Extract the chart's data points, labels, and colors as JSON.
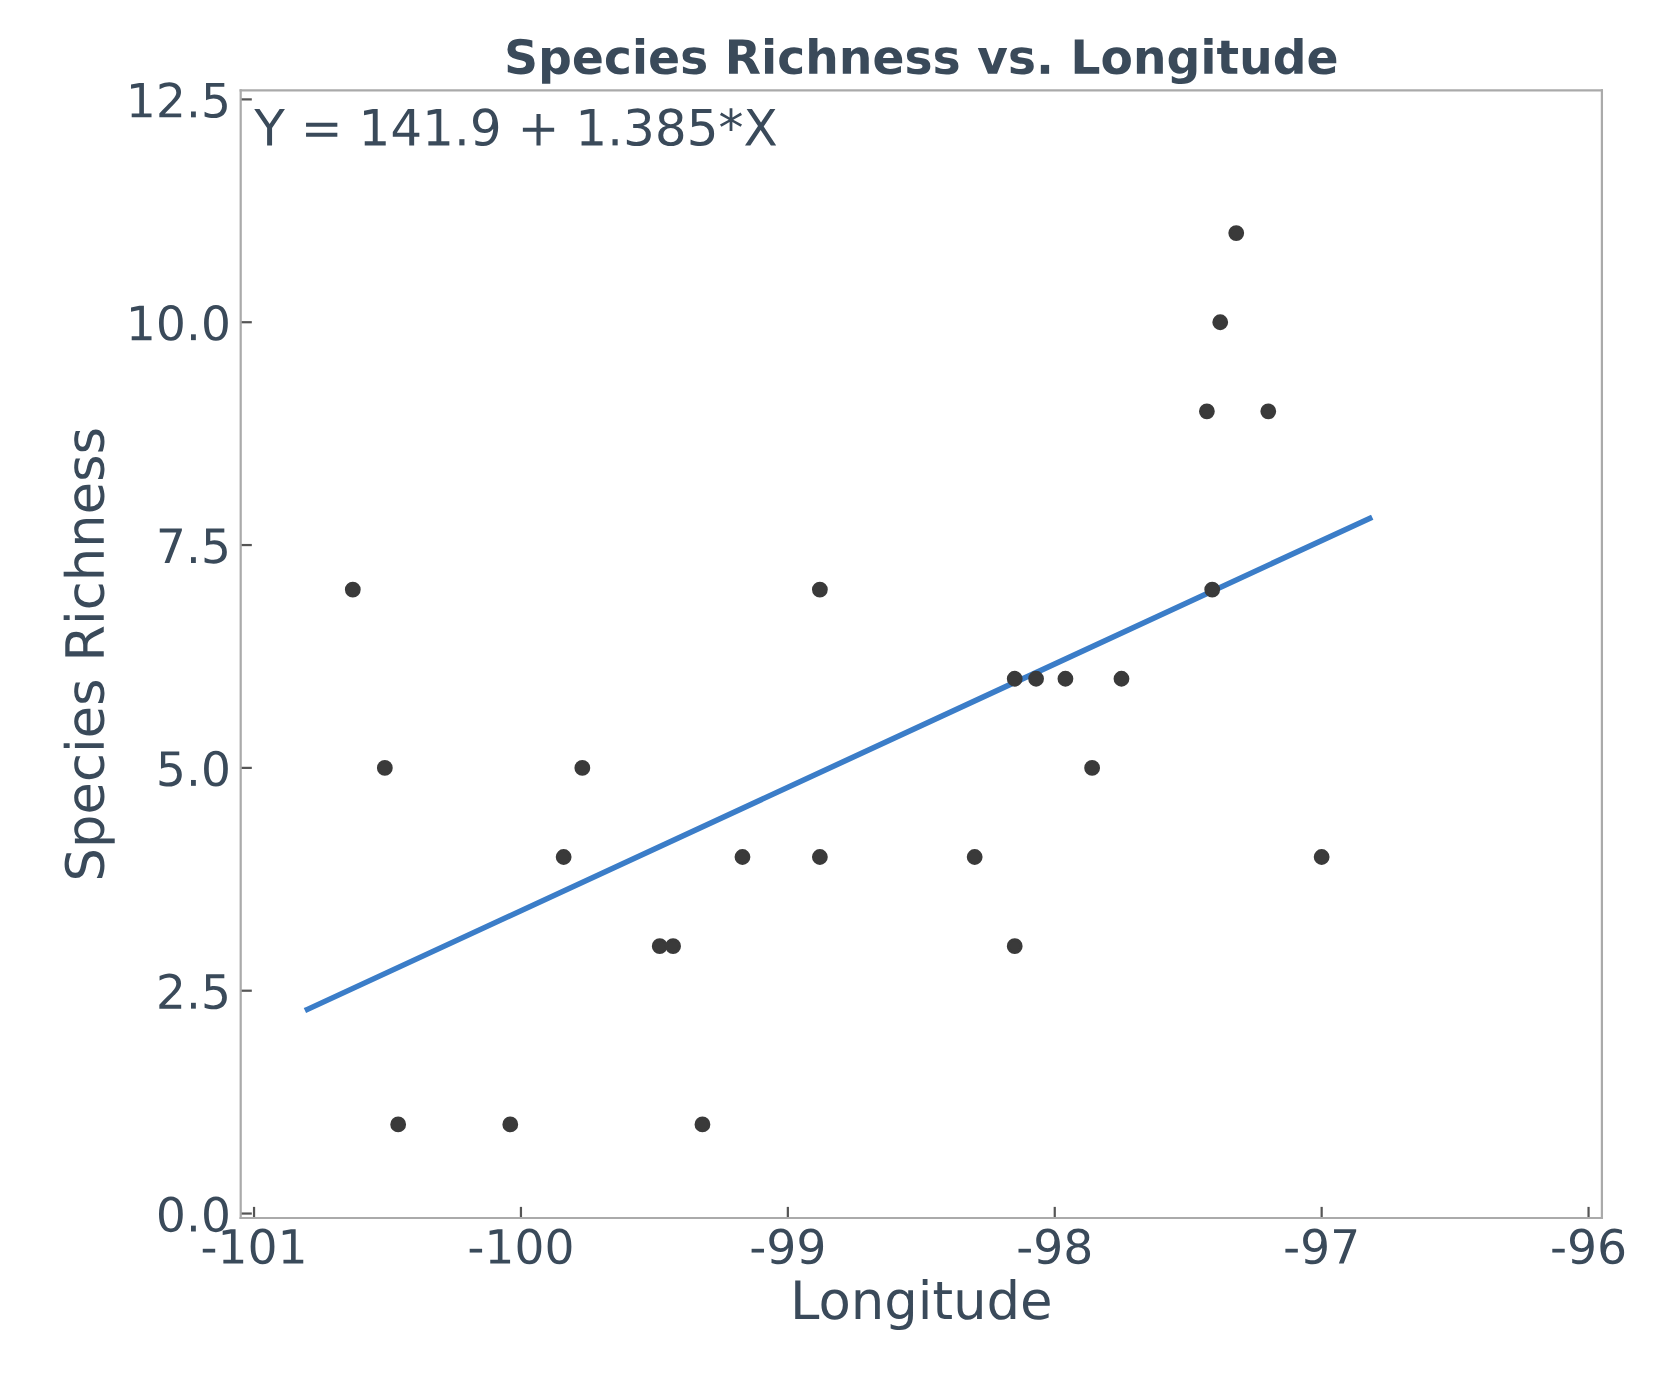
{
  "chart_data": {
    "type": "scatter",
    "title": "Species Richness vs. Longitude",
    "xlabel": "Longitude",
    "ylabel": "Species Richness",
    "annotations": [
      "Y = 141.9 + 1.385*X"
    ],
    "series": [
      {
        "color": "#3a3a3a",
        "marker": "circle",
        "x": [
          -100.63,
          -100.51,
          -100.46,
          -100.04,
          -99.84,
          -99.77,
          -99.48,
          -99.43,
          -99.32,
          -99.17,
          -98.88,
          -98.88,
          -98.3,
          -98.15,
          -98.15,
          -98.07,
          -97.96,
          -97.86,
          -97.75,
          -97.43,
          -97.41,
          -97.38,
          -97.32,
          -97.2,
          -97.0
        ],
        "values": [
          7,
          5,
          1,
          1,
          4,
          5,
          3,
          3,
          1,
          4,
          7,
          4,
          4,
          3,
          6,
          6,
          6,
          5,
          6,
          9,
          7,
          10,
          11,
          9,
          4
        ]
      },
      {
        "type": "line",
        "color": "#3b7dc8",
        "line_style": "solid",
        "x": [
          -100.8,
          -96.82
        ],
        "values": [
          2.29,
          7.8
        ]
      }
    ],
    "xlim": [
      -101.05,
      -95.95
    ],
    "xticks": [
      -101,
      -100,
      -99,
      -98,
      -97,
      -96
    ],
    "ylim": [
      -0.05,
      12.6
    ],
    "yticks": [
      {
        "value": 0,
        "label": "0.0"
      },
      {
        "value": 2.5,
        "label": "2.5"
      },
      {
        "value": 5,
        "label": "5.0"
      },
      {
        "value": 7.5,
        "label": "7.5"
      },
      {
        "value": 10,
        "label": "10.0"
      },
      {
        "value": 12.5,
        "label": "12.5"
      }
    ],
    "grid": false,
    "legend": false
  }
}
